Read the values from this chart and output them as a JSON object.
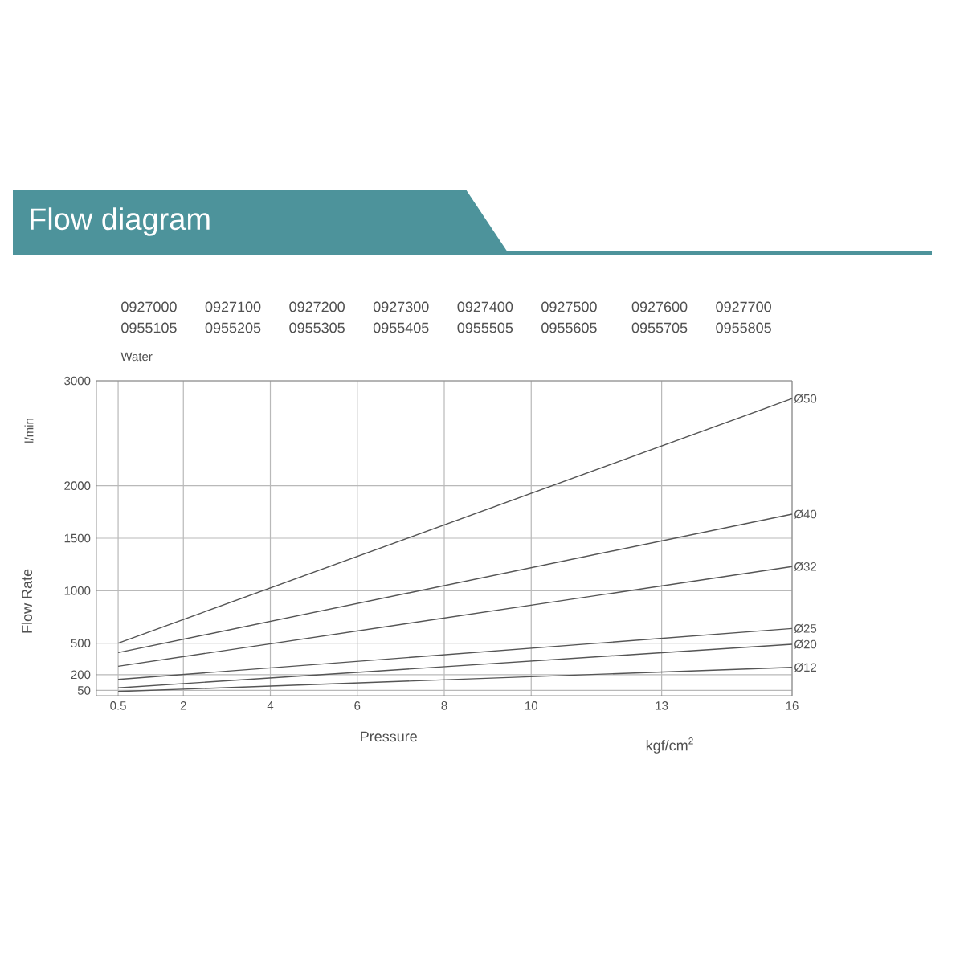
{
  "chart_data": {
    "type": "line",
    "title": "Flow diagram",
    "xlabel": "Pressure",
    "ylabel": "Flow Rate",
    "annotations": [
      "0927000",
      "0927100",
      "0927200",
      "0927300",
      "0927400",
      "0927500",
      "0927600",
      "0927700",
      "0955105",
      "0955205",
      "0955305",
      "0955405",
      "0955505",
      "0955605",
      "0955705",
      "0955805",
      "Water",
      "l/min",
      "kgf/cm$^{2}$"
    ],
    "x": [
      0.5,
      16
    ],
    "series": [
      {
        "name": "Ø50",
        "color": "#555555",
        "values": [
          500,
          2830
        ]
      },
      {
        "name": "Ø40",
        "color": "#555555",
        "values": [
          410,
          1730
        ]
      },
      {
        "name": "Ø32",
        "color": "#555555",
        "values": [
          280,
          1230
        ]
      },
      {
        "name": "Ø25",
        "color": "#555555",
        "values": [
          155,
          640
        ]
      },
      {
        "name": "Ø20",
        "color": "#555555",
        "values": [
          75,
          490
        ]
      },
      {
        "name": "Ø12",
        "color": "#555555",
        "values": [
          40,
          270
        ]
      }
    ],
    "xlim": [
      0,
      16
    ],
    "ylim": [
      0,
      3000
    ],
    "xticks": [
      0.5,
      2,
      4,
      6,
      8,
      10,
      13,
      16
    ],
    "yticks": [
      50,
      200,
      500,
      1000,
      1500,
      2000,
      3000
    ],
    "grid": true
  }
}
